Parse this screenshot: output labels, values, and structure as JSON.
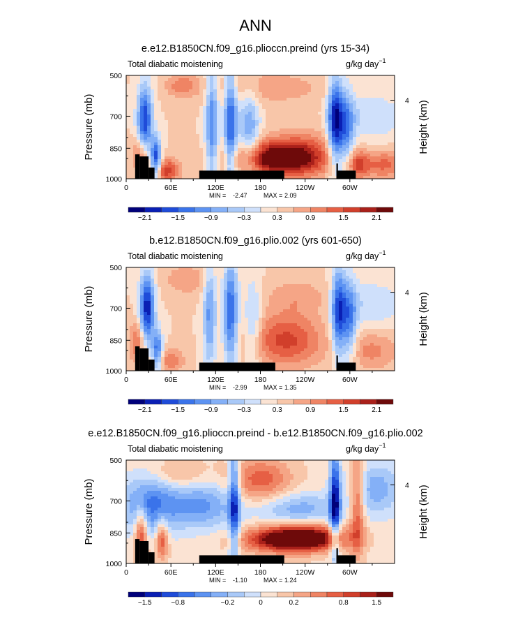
{
  "super_title": "ANN",
  "colors": {
    "scale": [
      "#00007a",
      "#0a1fb4",
      "#1f4cd9",
      "#3a73ea",
      "#5d93f2",
      "#84b0f7",
      "#a9c9f8",
      "#cfe0fb",
      "#fbe3d3",
      "#f8c6a9",
      "#f5a586",
      "#ef8464",
      "#e65f44",
      "#d13f2b",
      "#a9201a",
      "#6e0a0a"
    ],
    "land": "#000000",
    "frame": "#000000"
  },
  "chart_data": [
    {
      "type": "heatmap",
      "title": "e.e12.B1850CN.f09_g16.plioccn.preind (yrs 15-34)",
      "subtitle_left": "Total diabatic moistening",
      "subtitle_right": "g/kg day",
      "units_exponent": "−1",
      "ylabel": "Pressure (mb)",
      "ylabel_right": "Height (km)",
      "yticks": [
        "500",
        "700",
        "850",
        "1000"
      ],
      "yticks_right": [
        "4"
      ],
      "xticks": [
        "0",
        "60E",
        "120E",
        "180",
        "120W",
        "60W"
      ],
      "xlim": [
        0,
        360
      ],
      "ylim": [
        1000,
        500
      ],
      "min_label": "MIN =",
      "min_value": "-2.47",
      "max_label": "MAX =",
      "max_value": "2.09",
      "colorbar_labels": [
        "−2.1",
        "−1.5",
        "−0.9",
        "−0.3",
        "0.3",
        "0.9",
        "1.5",
        "2.1"
      ],
      "features": [
        {
          "lon": 25,
          "p": 720,
          "sx": 7,
          "sy": 120,
          "a": -2.1
        },
        {
          "lon": 40,
          "p": 900,
          "sx": 5,
          "sy": 70,
          "a": -2.0
        },
        {
          "lon": 55,
          "p": 960,
          "sx": 12,
          "sy": 40,
          "a": 1.4
        },
        {
          "lon": 20,
          "p": 880,
          "sx": 8,
          "sy": 60,
          "a": 1.1
        },
        {
          "lon": 115,
          "p": 730,
          "sx": 6,
          "sy": 200,
          "a": -1.5
        },
        {
          "lon": 140,
          "p": 740,
          "sx": 6,
          "sy": 200,
          "a": -1.9
        },
        {
          "lon": 165,
          "p": 780,
          "sx": 10,
          "sy": 150,
          "a": -1.2
        },
        {
          "lon": 200,
          "p": 900,
          "sx": 40,
          "sy": 60,
          "a": 2.1
        },
        {
          "lon": 240,
          "p": 880,
          "sx": 30,
          "sy": 80,
          "a": 0.8
        },
        {
          "lon": 280,
          "p": 720,
          "sx": 7,
          "sy": 150,
          "a": -2.2
        },
        {
          "lon": 295,
          "p": 760,
          "sx": 8,
          "sy": 140,
          "a": -1.4
        },
        {
          "lon": 310,
          "p": 930,
          "sx": 10,
          "sy": 50,
          "a": 1.2
        },
        {
          "lon": 345,
          "p": 930,
          "sx": 20,
          "sy": 50,
          "a": 1.0
        },
        {
          "lon": 75,
          "p": 550,
          "sx": 15,
          "sy": 40,
          "a": 0.8
        },
        {
          "lon": 190,
          "p": 560,
          "sx": 60,
          "sy": 60,
          "a": 0.5
        },
        {
          "lon": 330,
          "p": 700,
          "sx": 30,
          "sy": 80,
          "a": -0.6
        }
      ],
      "background_value": 0.3,
      "land": [
        [
          12,
          18,
          880
        ],
        [
          18,
          30,
          890
        ],
        [
          30,
          38,
          945
        ],
        [
          98,
          212,
          960
        ],
        [
          282,
          308,
          960
        ],
        [
          282,
          284,
          925
        ]
      ]
    },
    {
      "type": "heatmap",
      "title": "b.e12.B1850CN.f09_g16.plio.002 (yrs 601-650)",
      "subtitle_left": "Total diabatic moistening",
      "subtitle_right": "g/kg day",
      "units_exponent": "−1",
      "ylabel": "Pressure (mb)",
      "ylabel_right": "Height (km)",
      "yticks": [
        "500",
        "700",
        "850",
        "1000"
      ],
      "yticks_right": [
        "4"
      ],
      "xticks": [
        "0",
        "60E",
        "120E",
        "180",
        "120W",
        "60W"
      ],
      "xlim": [
        0,
        360
      ],
      "ylim": [
        1000,
        500
      ],
      "min_label": "MIN =",
      "min_value": "-2.99",
      "max_label": "MAX =",
      "max_value": "1.35",
      "colorbar_labels": [
        "−2.1",
        "−1.5",
        "−0.9",
        "−0.3",
        "0.3",
        "0.9",
        "1.5",
        "2.1"
      ],
      "features": [
        {
          "lon": 28,
          "p": 700,
          "sx": 7,
          "sy": 120,
          "a": -2.3
        },
        {
          "lon": 42,
          "p": 900,
          "sx": 5,
          "sy": 70,
          "a": -1.6
        },
        {
          "lon": 15,
          "p": 860,
          "sx": 8,
          "sy": 70,
          "a": 1.0
        },
        {
          "lon": 60,
          "p": 950,
          "sx": 12,
          "sy": 40,
          "a": 0.9
        },
        {
          "lon": 112,
          "p": 730,
          "sx": 6,
          "sy": 180,
          "a": -1.3
        },
        {
          "lon": 140,
          "p": 720,
          "sx": 7,
          "sy": 180,
          "a": -1.8
        },
        {
          "lon": 170,
          "p": 780,
          "sx": 8,
          "sy": 150,
          "a": -0.9
        },
        {
          "lon": 215,
          "p": 850,
          "sx": 35,
          "sy": 90,
          "a": 1.3
        },
        {
          "lon": 285,
          "p": 720,
          "sx": 7,
          "sy": 150,
          "a": -2.0
        },
        {
          "lon": 300,
          "p": 760,
          "sx": 7,
          "sy": 140,
          "a": -1.3
        },
        {
          "lon": 330,
          "p": 900,
          "sx": 25,
          "sy": 70,
          "a": 0.7
        },
        {
          "lon": 80,
          "p": 560,
          "sx": 20,
          "sy": 50,
          "a": 0.6
        },
        {
          "lon": 230,
          "p": 640,
          "sx": 30,
          "sy": 60,
          "a": 0.5
        },
        {
          "lon": 330,
          "p": 680,
          "sx": 30,
          "sy": 80,
          "a": -0.6
        }
      ],
      "background_value": 0.3,
      "land": [
        [
          12,
          18,
          880
        ],
        [
          18,
          30,
          890
        ],
        [
          30,
          38,
          945
        ],
        [
          98,
          200,
          960
        ],
        [
          282,
          308,
          960
        ],
        [
          282,
          284,
          925
        ]
      ]
    },
    {
      "type": "heatmap",
      "title": "e.e12.B1850CN.f09_g16.plioccn.preind - b.e12.B1850CN.f09_g16.plio.002",
      "subtitle_left": "Total diabatic moistening",
      "subtitle_right": "g/kg day",
      "units_exponent": "−1",
      "ylabel": "Pressure (mb)",
      "ylabel_right": "Height (km)",
      "yticks": [
        "500",
        "700",
        "850",
        "1000"
      ],
      "yticks_right": [
        "4"
      ],
      "xticks": [
        "0",
        "60E",
        "120E",
        "180",
        "120W",
        "60W"
      ],
      "xlim": [
        0,
        360
      ],
      "ylim": [
        1000,
        500
      ],
      "min_label": "MIN =",
      "min_value": "-1.10",
      "max_label": "MAX =",
      "max_value": "1.24",
      "colorbar_labels": [
        "−1.5",
        "−0.8",
        "−0.2",
        "0",
        "0.2",
        "0.8",
        "1.5"
      ],
      "features": [
        {
          "lon": 30,
          "p": 720,
          "sx": 25,
          "sy": 100,
          "a": -0.7
        },
        {
          "lon": 20,
          "p": 850,
          "sx": 6,
          "sy": 90,
          "a": 0.8
        },
        {
          "lon": 48,
          "p": 880,
          "sx": 6,
          "sy": 70,
          "a": 0.7
        },
        {
          "lon": 100,
          "p": 720,
          "sx": 35,
          "sy": 80,
          "a": -0.6
        },
        {
          "lon": 145,
          "p": 700,
          "sx": 5,
          "sy": 220,
          "a": -0.9
        },
        {
          "lon": 180,
          "p": 600,
          "sx": 30,
          "sy": 80,
          "a": 0.6
        },
        {
          "lon": 215,
          "p": 880,
          "sx": 40,
          "sy": 45,
          "a": 1.2
        },
        {
          "lon": 255,
          "p": 870,
          "sx": 35,
          "sy": 45,
          "a": 0.6
        },
        {
          "lon": 230,
          "p": 740,
          "sx": 40,
          "sy": 60,
          "a": -0.5
        },
        {
          "lon": 280,
          "p": 700,
          "sx": 5,
          "sy": 180,
          "a": -1.1
        },
        {
          "lon": 310,
          "p": 700,
          "sx": 7,
          "sy": 180,
          "a": 0.7
        },
        {
          "lon": 335,
          "p": 640,
          "sx": 25,
          "sy": 90,
          "a": -0.5
        },
        {
          "lon": 70,
          "p": 570,
          "sx": 25,
          "sy": 50,
          "a": 0.3
        }
      ],
      "background_value": 0.1,
      "land": [
        [
          12,
          18,
          880
        ],
        [
          18,
          30,
          890
        ],
        [
          30,
          38,
          945
        ],
        [
          98,
          212,
          960
        ],
        [
          282,
          308,
          960
        ],
        [
          282,
          284,
          925
        ]
      ]
    }
  ]
}
